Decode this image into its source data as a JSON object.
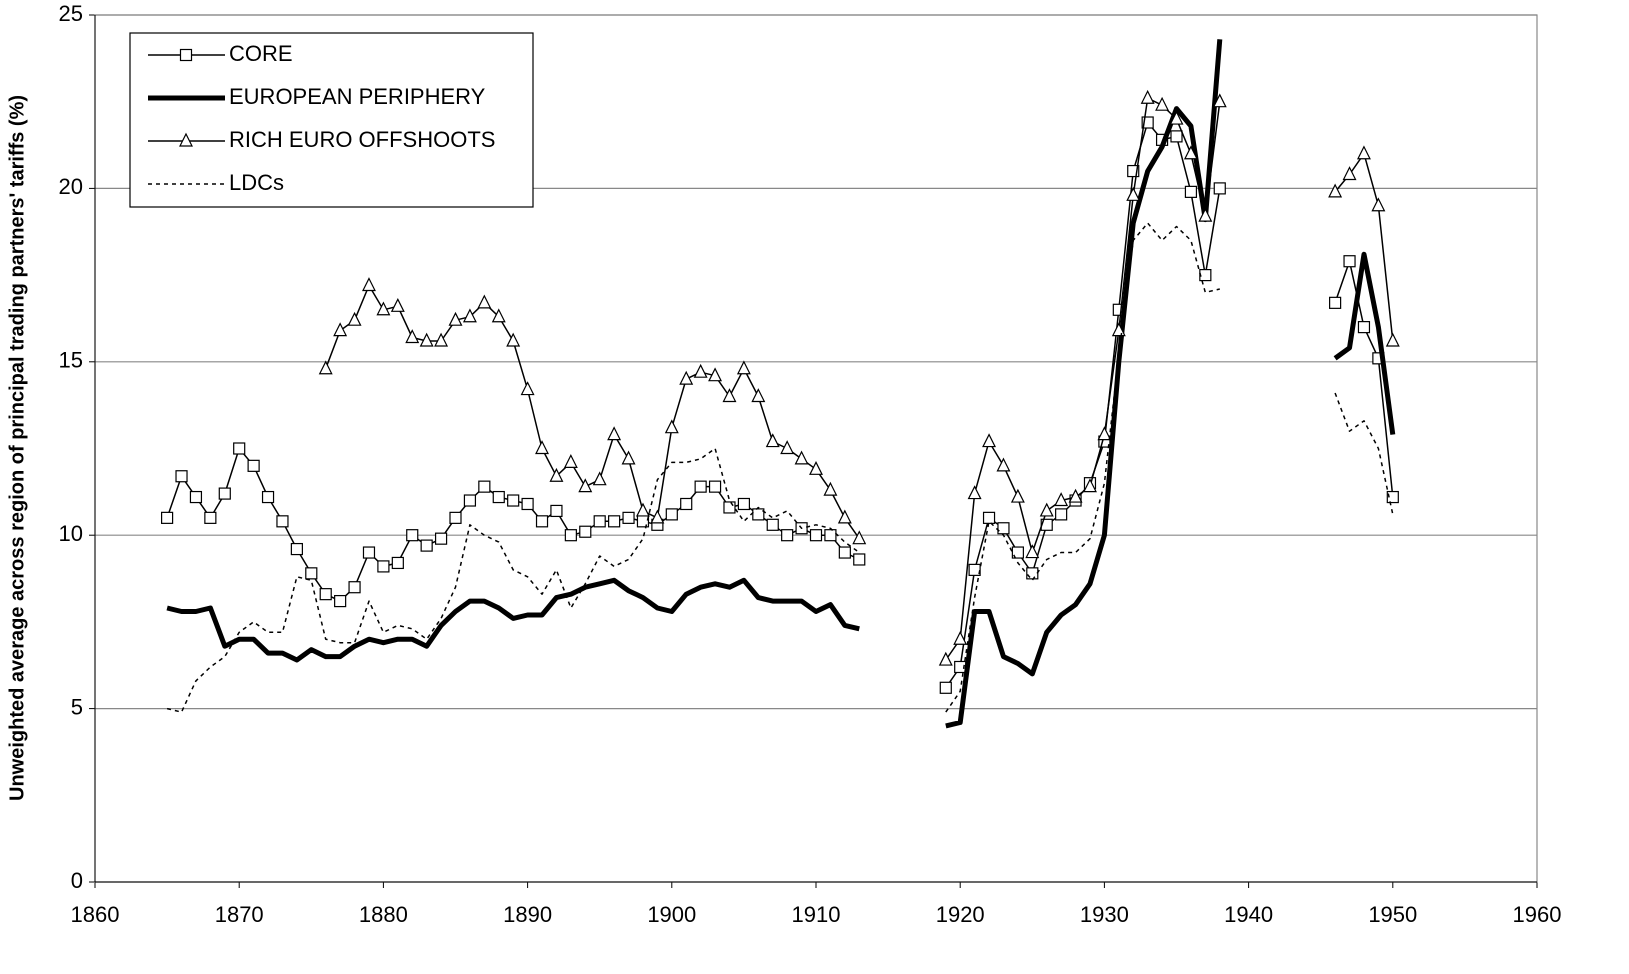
{
  "chart_data": {
    "type": "line",
    "y_label": "Unweighted average across region of principal trading partners' tariffs (%)",
    "x": [
      1865,
      1866,
      1867,
      1868,
      1869,
      1870,
      1871,
      1872,
      1873,
      1874,
      1875,
      1876,
      1877,
      1878,
      1879,
      1880,
      1881,
      1882,
      1883,
      1884,
      1885,
      1886,
      1887,
      1888,
      1889,
      1890,
      1891,
      1892,
      1893,
      1894,
      1895,
      1896,
      1897,
      1898,
      1899,
      1900,
      1901,
      1902,
      1903,
      1904,
      1905,
      1906,
      1907,
      1908,
      1909,
      1910,
      1911,
      1912,
      1913,
      1914,
      1915,
      1916,
      1917,
      1918,
      1919,
      1920,
      1921,
      1922,
      1923,
      1924,
      1925,
      1926,
      1927,
      1928,
      1929,
      1930,
      1931,
      1932,
      1933,
      1934,
      1935,
      1936,
      1937,
      1938,
      1939,
      1940,
      1941,
      1942,
      1943,
      1944,
      1945,
      1946,
      1947,
      1948,
      1949,
      1950
    ],
    "series": [
      {
        "name": "CORE",
        "color": "#000000",
        "width": 1.5,
        "marker": "square",
        "dash": false,
        "values": [
          10.5,
          11.7,
          11.1,
          10.5,
          11.2,
          12.5,
          12.0,
          11.1,
          10.4,
          9.6,
          8.9,
          8.3,
          8.1,
          8.5,
          9.5,
          9.1,
          9.2,
          10.0,
          9.7,
          9.9,
          10.5,
          11.0,
          11.4,
          11.1,
          11.0,
          10.9,
          10.4,
          10.7,
          10.0,
          10.1,
          10.4,
          10.4,
          10.5,
          10.4,
          10.3,
          10.6,
          10.9,
          11.4,
          11.4,
          10.8,
          10.9,
          10.6,
          10.3,
          10.0,
          10.2,
          10.0,
          10.0,
          9.5,
          9.3,
          null,
          null,
          null,
          null,
          null,
          5.6,
          6.2,
          9.0,
          10.5,
          10.2,
          9.5,
          8.9,
          10.3,
          10.6,
          11.0,
          11.5,
          12.7,
          16.5,
          20.5,
          21.9,
          21.4,
          21.5,
          19.9,
          17.5,
          20.0,
          null,
          null,
          null,
          null,
          null,
          null,
          null,
          16.7,
          17.9,
          16.0,
          15.1,
          11.1
        ]
      },
      {
        "name": "EUROPEAN PERIPHERY",
        "color": "#000000",
        "width": 5,
        "marker": "none",
        "dash": false,
        "values": [
          7.9,
          7.8,
          7.8,
          7.9,
          6.8,
          7.0,
          7.0,
          6.6,
          6.6,
          6.4,
          6.7,
          6.5,
          6.5,
          6.8,
          7.0,
          6.9,
          7.0,
          7.0,
          6.8,
          7.4,
          7.8,
          8.1,
          8.1,
          7.9,
          7.6,
          7.7,
          7.7,
          8.2,
          8.3,
          8.5,
          8.6,
          8.7,
          8.4,
          8.2,
          7.9,
          7.8,
          8.3,
          8.5,
          8.6,
          8.5,
          8.7,
          8.2,
          8.1,
          8.1,
          8.1,
          7.8,
          8.0,
          7.4,
          7.3,
          null,
          null,
          null,
          null,
          null,
          4.5,
          4.6,
          7.8,
          7.8,
          6.5,
          6.3,
          6.0,
          7.2,
          7.7,
          8.0,
          8.6,
          10.0,
          15.0,
          19.0,
          20.5,
          21.2,
          22.3,
          21.8,
          19.1,
          24.3,
          null,
          null,
          null,
          null,
          null,
          null,
          null,
          15.1,
          15.4,
          18.1,
          16.0,
          12.9
        ]
      },
      {
        "name": "RICH EURO OFFSHOOTS",
        "color": "#000000",
        "width": 1.5,
        "marker": "triangle",
        "dash": false,
        "values": [
          null,
          null,
          null,
          null,
          null,
          null,
          null,
          null,
          null,
          null,
          null,
          14.8,
          15.9,
          16.2,
          17.2,
          16.5,
          16.6,
          15.7,
          15.6,
          15.6,
          16.2,
          16.3,
          16.7,
          16.3,
          15.6,
          14.2,
          12.5,
          11.7,
          12.1,
          11.4,
          11.6,
          12.9,
          12.2,
          10.7,
          10.5,
          13.1,
          14.5,
          14.7,
          14.6,
          14.0,
          14.8,
          14.0,
          12.7,
          12.5,
          12.2,
          11.9,
          11.3,
          10.5,
          9.9,
          null,
          null,
          null,
          null,
          null,
          6.4,
          7.0,
          11.2,
          12.7,
          12.0,
          11.1,
          9.5,
          10.7,
          11.0,
          11.1,
          11.4,
          12.9,
          15.9,
          19.8,
          22.6,
          22.4,
          22.0,
          21.0,
          19.2,
          22.5,
          null,
          null,
          null,
          null,
          null,
          null,
          null,
          19.9,
          20.4,
          21.0,
          19.5,
          15.6
        ]
      },
      {
        "name": "LDCs",
        "color": "#000000",
        "width": 1.5,
        "marker": "none",
        "dash": true,
        "values": [
          5.0,
          4.9,
          5.8,
          6.2,
          6.5,
          7.2,
          7.5,
          7.2,
          7.2,
          8.8,
          8.7,
          7.0,
          6.9,
          6.9,
          8.1,
          7.2,
          7.4,
          7.3,
          7.0,
          7.6,
          8.5,
          10.3,
          10.0,
          9.8,
          9.0,
          8.8,
          8.3,
          9.0,
          7.9,
          8.6,
          9.4,
          9.1,
          9.3,
          9.9,
          11.6,
          12.1,
          12.1,
          12.2,
          12.5,
          11.0,
          10.4,
          10.8,
          10.5,
          10.7,
          10.2,
          10.3,
          10.2,
          9.8,
          9.5,
          null,
          null,
          null,
          null,
          null,
          4.9,
          5.5,
          8.2,
          10.4,
          10.0,
          9.2,
          8.7,
          9.3,
          9.5,
          9.5,
          9.9,
          11.5,
          15.2,
          18.5,
          19.0,
          18.5,
          18.9,
          18.5,
          17.0,
          17.1,
          null,
          null,
          null,
          null,
          null,
          null,
          null,
          14.1,
          13.0,
          13.3,
          12.5,
          10.6
        ]
      }
    ],
    "xlim": [
      1860,
      1960
    ],
    "xticks": [
      1860,
      1870,
      1880,
      1890,
      1900,
      1910,
      1920,
      1930,
      1940,
      1950,
      1960
    ],
    "ylim": [
      0,
      25
    ],
    "yticks": [
      0,
      5,
      10,
      15,
      20,
      25
    ],
    "grid": true,
    "legend": "upper left"
  }
}
